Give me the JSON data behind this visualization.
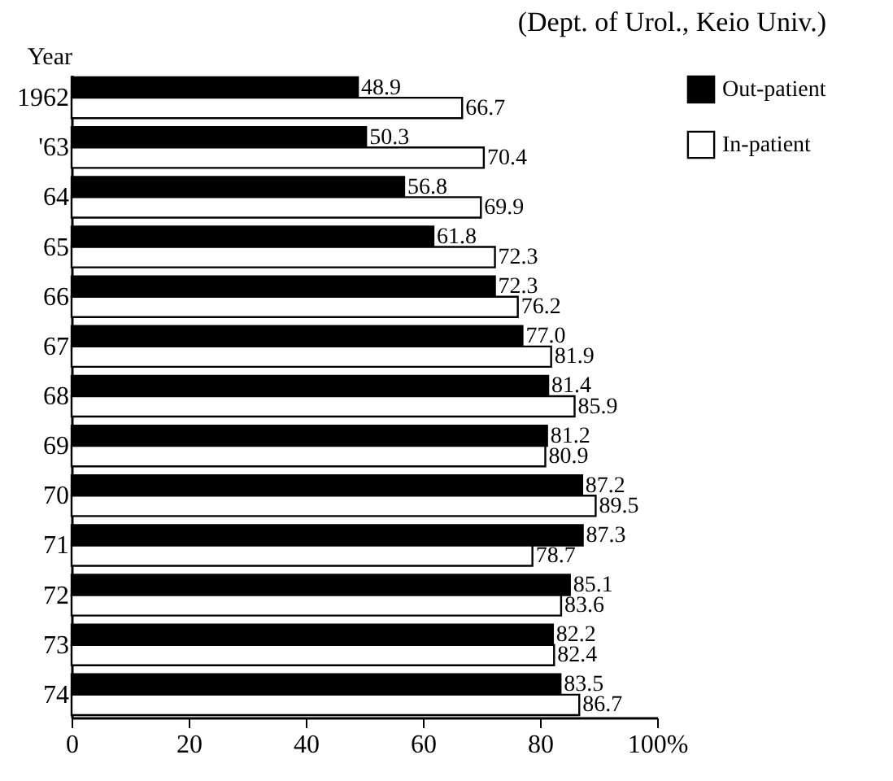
{
  "chart_data": {
    "type": "bar",
    "orientation": "horizontal",
    "title": "(Dept. of Urol., Keio Univ.)",
    "ylabel": "Year",
    "categories": [
      "1962",
      "'63",
      "64",
      "65",
      "66",
      "67",
      "68",
      "69",
      "70",
      "71",
      "72",
      "73",
      "74"
    ],
    "series": [
      {
        "name": "Out-patient",
        "color": "#000000",
        "values": [
          48.9,
          50.3,
          56.8,
          61.8,
          72.3,
          77.0,
          81.4,
          81.2,
          87.2,
          87.3,
          85.1,
          82.2,
          83.5
        ],
        "value_labels": [
          "48.9",
          "50.3",
          "56.8",
          "61.8",
          "72.3",
          "77.0",
          "81.4",
          "81.2",
          "87.2",
          "87.3",
          "85.1",
          "82.2",
          "83.5"
        ]
      },
      {
        "name": "In-patient",
        "color": "#ffffff",
        "values": [
          66.7,
          70.4,
          69.9,
          72.3,
          76.2,
          81.9,
          85.9,
          80.9,
          89.5,
          78.7,
          83.6,
          82.4,
          86.7
        ],
        "value_labels": [
          "66.7",
          "70.4",
          "69.9",
          "72.3",
          "76.2",
          "81.9",
          "85.9",
          "80.9",
          "89.5",
          "78.7",
          "83.6",
          "82.4",
          "86.7"
        ]
      }
    ],
    "legend": "right",
    "grid": false,
    "xlim": [
      0,
      100
    ],
    "xticks": [
      0,
      20,
      40,
      60,
      80,
      {
        "value": 100,
        "label": "100%"
      }
    ]
  }
}
